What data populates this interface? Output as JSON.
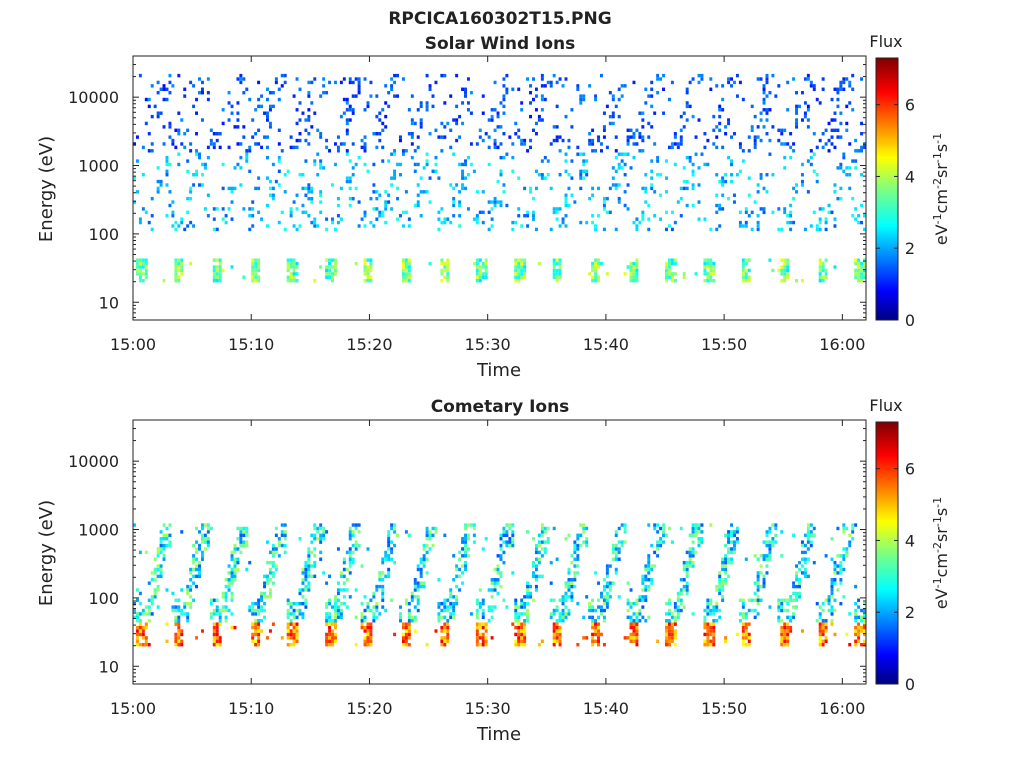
{
  "figure": {
    "file_title": "RPCICA160302T15.PNG"
  },
  "chart_data": [
    {
      "type": "heatmap",
      "title": "Solar Wind Ions",
      "xlabel": "Time",
      "ylabel": "Energy (eV)",
      "x_range": [
        "15:00",
        "16:02"
      ],
      "x_ticks": [
        "15:00",
        "15:10",
        "15:20",
        "15:30",
        "15:40",
        "15:50",
        "16:00"
      ],
      "y_scale": "log",
      "y_range": [
        5.5,
        40000
      ],
      "y_ticks": [
        "10",
        "100",
        "1000",
        "10000"
      ],
      "colorbar": {
        "title": "Flux",
        "units": "eV-1cm-2sr-1s-1",
        "range": [
          0,
          7.3
        ],
        "ticks": [
          "0",
          "2",
          "4",
          "6"
        ],
        "colormap": "jet"
      },
      "grid": false,
      "sweep_period_minutes": 3.2,
      "bands": [
        {
          "energy_range": [
            18,
            40
          ],
          "flux_range": [
            2.5,
            4.5
          ],
          "description_level": "low-energy band once per sweep"
        },
        {
          "energy_range": [
            100,
            1500
          ],
          "flux_range": [
            1.5,
            3
          ],
          "description_level": "scattered counts"
        },
        {
          "energy_range": [
            1500,
            20000
          ],
          "flux_range": [
            1,
            2
          ],
          "description_level": "sparse counts"
        }
      ],
      "flux_max": 4.8
    },
    {
      "type": "heatmap",
      "title": "Cometary Ions",
      "xlabel": "Time",
      "ylabel": "Energy (eV)",
      "x_range": [
        "15:00",
        "16:02"
      ],
      "x_ticks": [
        "15:00",
        "15:10",
        "15:20",
        "15:30",
        "15:40",
        "15:50",
        "16:00"
      ],
      "y_scale": "log",
      "y_range": [
        5.5,
        40000
      ],
      "y_ticks": [
        "10",
        "100",
        "1000",
        "10000"
      ],
      "colorbar": {
        "title": "Flux",
        "units": "eV-1cm-2sr-1s-1",
        "range": [
          0,
          7.3
        ],
        "ticks": [
          "0",
          "2",
          "4",
          "6"
        ],
        "colormap": "jet"
      },
      "grid": false,
      "sweep_period_minutes": 3.2,
      "bands": [
        {
          "energy_range": [
            18,
            42
          ],
          "flux_range": [
            4.5,
            6.5
          ],
          "description_level": "intense low-energy band once per sweep"
        },
        {
          "energy_range": [
            42,
            1200
          ],
          "flux_range": [
            1.5,
            4
          ],
          "description_level": "curved ion streaks rising to higher energy"
        }
      ],
      "flux_max": 6.4
    }
  ]
}
